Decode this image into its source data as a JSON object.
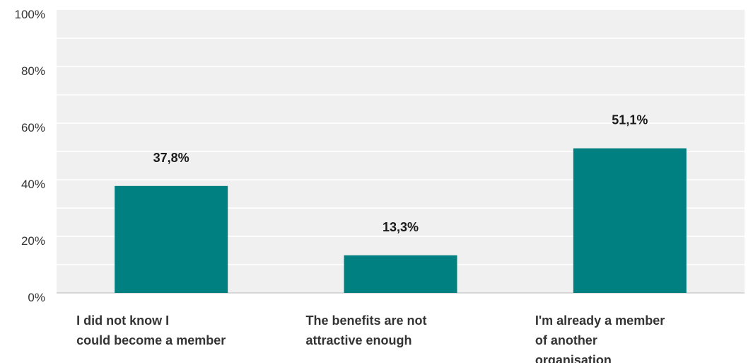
{
  "chart_data": {
    "type": "bar",
    "categories": [
      [
        "I did not know I",
        "could become a member"
      ],
      [
        "The benefits are not",
        "attractive enough"
      ],
      [
        "I'm already a member",
        "of another",
        "organisation"
      ]
    ],
    "values": [
      37.8,
      13.3,
      51.1
    ],
    "data_labels": [
      "37,8%",
      "13,3%",
      "51,1%"
    ],
    "y_ticks": [
      "0%",
      "20%",
      "40%",
      "60%",
      "80%",
      "100%"
    ],
    "ylim": [
      0,
      100
    ],
    "grid": true,
    "colors": {
      "bar": "#008080",
      "plot_background": "#f0f0f0",
      "gridline": "#ffffff",
      "axis_line": "#bbbbbb"
    }
  }
}
